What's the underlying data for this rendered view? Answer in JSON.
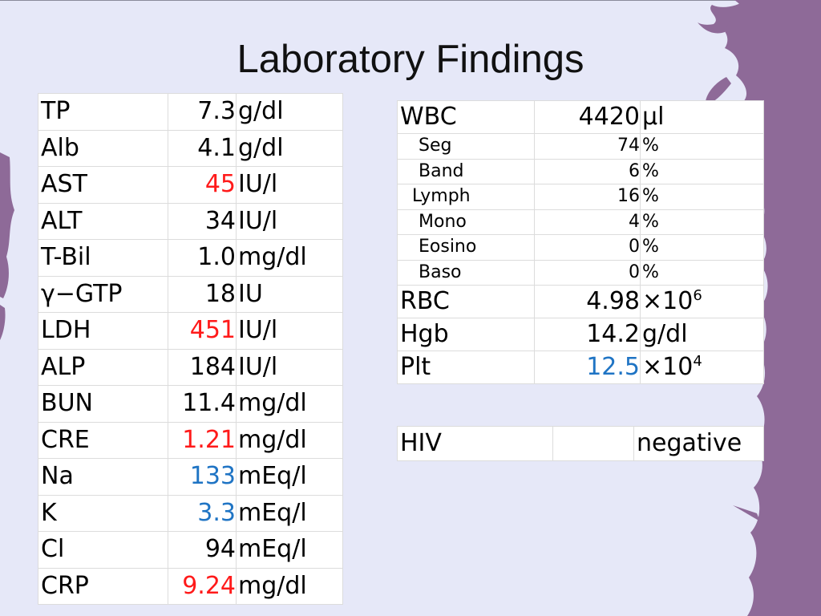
{
  "title": "Laboratory Findings",
  "left_table": [
    {
      "name": "TP",
      "value": "7.3",
      "unit": "g/dl",
      "flag": ""
    },
    {
      "name": "Alb",
      "value": "4.1",
      "unit": "g/dl",
      "flag": ""
    },
    {
      "name": "AST",
      "value": "45",
      "unit": "IU/l",
      "flag": "red"
    },
    {
      "name": "ALT",
      "value": "34",
      "unit": "IU/l",
      "flag": ""
    },
    {
      "name": "T-Bil",
      "value": "1.0",
      "unit": "mg/dl",
      "flag": ""
    },
    {
      "name": "γ−GTP",
      "value": "18",
      "unit": "IU",
      "flag": ""
    },
    {
      "name": "LDH",
      "value": "451",
      "unit": "IU/l",
      "flag": "red"
    },
    {
      "name": "ALP",
      "value": "184",
      "unit": "IU/l",
      "flag": ""
    },
    {
      "name": "BUN",
      "value": "11.4",
      "unit": "mg/dl",
      "flag": ""
    },
    {
      "name": "CRE",
      "value": "1.21",
      "unit": "mg/dl",
      "flag": "red"
    },
    {
      "name": "Na",
      "value": "133",
      "unit": "mEq/l",
      "flag": "blue"
    },
    {
      "name": "K",
      "value": "3.3",
      "unit": "mEq/l",
      "flag": "blue"
    },
    {
      "name": "Cl",
      "value": "94",
      "unit": "mEq/l",
      "flag": ""
    },
    {
      "name": "CRP",
      "value": "9.24",
      "unit": "mg/dl",
      "flag": "red"
    }
  ],
  "cbc_table": {
    "wbc": {
      "name": "WBC",
      "value": "4420",
      "unit": "μl"
    },
    "differential": [
      {
        "name": "Seg",
        "value": "74",
        "unit": "%"
      },
      {
        "name": "Band",
        "value": "6",
        "unit": "%"
      },
      {
        "name": "Lymph",
        "value": "16",
        "unit": "%"
      },
      {
        "name": "Mono",
        "value": "4",
        "unit": "%"
      },
      {
        "name": "Eosino",
        "value": "0",
        "unit": "%"
      },
      {
        "name": "Baso",
        "value": "0",
        "unit": "%"
      }
    ],
    "rbc": {
      "name": "RBC",
      "value": "4.98",
      "unit_base": "×10",
      "unit_exp": "6"
    },
    "hgb": {
      "name": "Hgb",
      "value": "14.2",
      "unit": "g/dl"
    },
    "plt": {
      "name": "Plt",
      "value": "12.5",
      "unit_base": "×10",
      "unit_exp": "4",
      "flag": "blue"
    }
  },
  "hiv": {
    "name": "HIV",
    "value": "",
    "result": "negative"
  },
  "colors": {
    "background": "#e6e8f8",
    "decor": "#8e6a98",
    "high": "#ff1a1a",
    "low": "#1f74c4"
  }
}
